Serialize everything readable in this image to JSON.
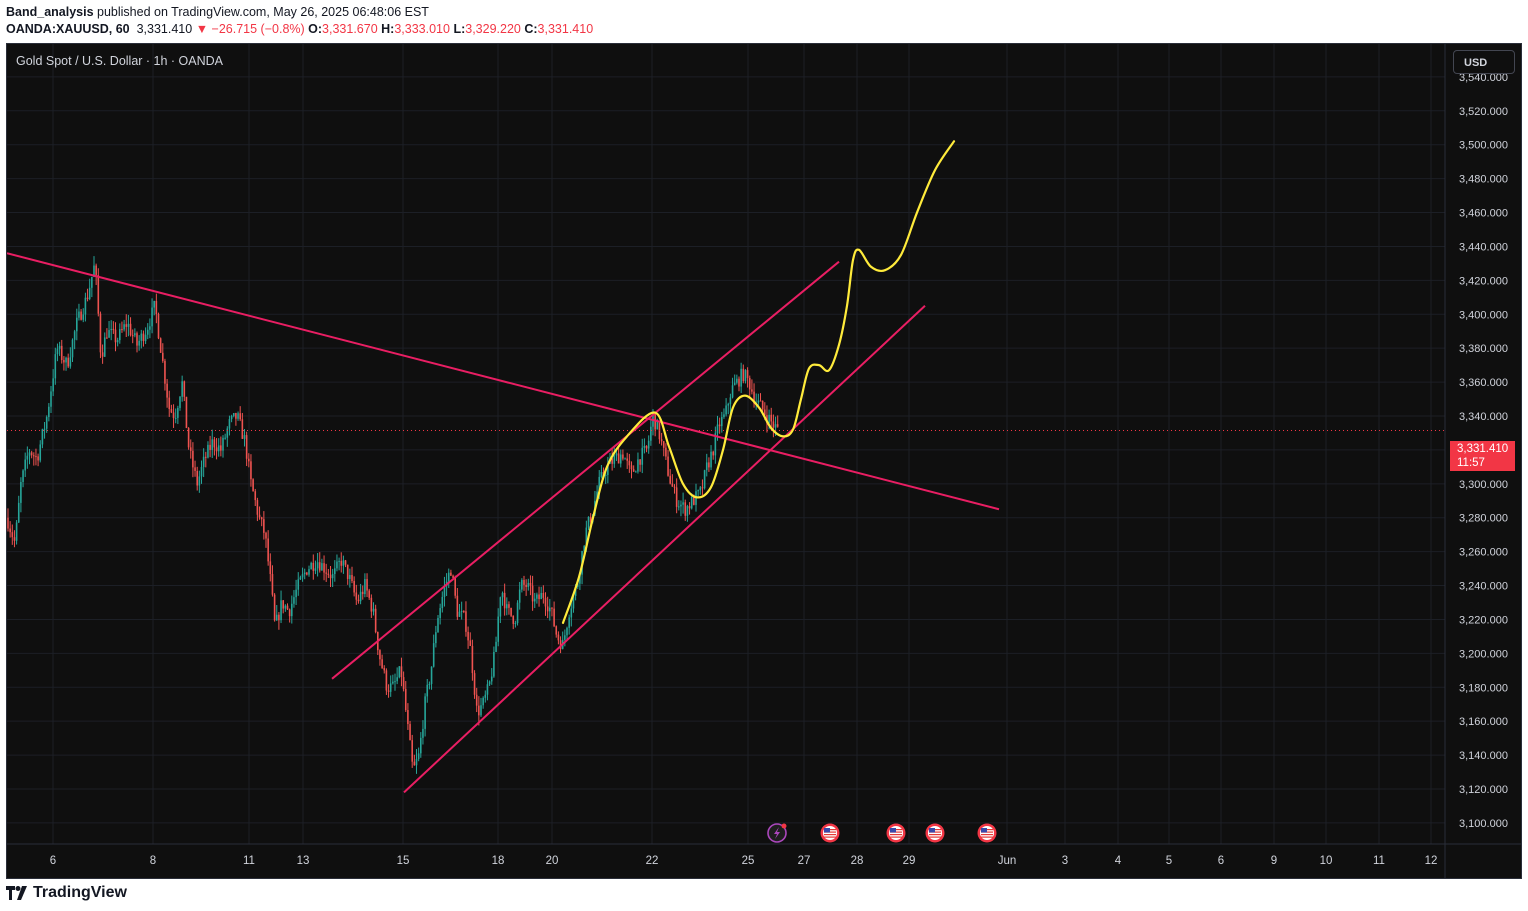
{
  "header": {
    "author": "Band_analysis",
    "published": " published on TradingView.com, May 26, 2025 06:48:06 EST",
    "symbol": "OANDA:XAUUSD, 60",
    "last": "3,331.410",
    "change": "−26.715 (−0.8%)",
    "o_label": "O:",
    "o": "3,331.670",
    "h_label": "H:",
    "h": "3,333.010",
    "l_label": "L:",
    "l": "3,329.220",
    "c_label": "C:",
    "c": "3,331.410"
  },
  "chart": {
    "symbol_title": "Gold Spot / U.S. Dollar · 1h · OANDA",
    "currency": "USD",
    "price_tag": "3,331.410",
    "countdown": "11:57"
  },
  "footer": {
    "brand": "TradingView"
  },
  "colors": {
    "background": "#0f0f0f",
    "up": "#26a69a",
    "down": "#ef5350",
    "trendline": "#e91e63",
    "projection": "#ffeb3b",
    "last_price": "#f23645"
  },
  "chart_data": {
    "type": "candlestick",
    "ylim": [
      3100,
      3550
    ],
    "y_ticks": [
      3100,
      3120,
      3140,
      3160,
      3180,
      3200,
      3220,
      3240,
      3260,
      3280,
      3300,
      3320,
      3340,
      3360,
      3380,
      3400,
      3420,
      3440,
      3460,
      3480,
      3500,
      3520,
      3540
    ],
    "y_tick_labels": [
      "3,100.000",
      "3,120.000",
      "3,140.000",
      "3,160.000",
      "3,180.000",
      "3,200.000",
      "3,220.000",
      "3,240.000",
      "3,260.000",
      "3,280.000",
      "3,300.000",
      "3,320.000",
      "3,340.000",
      "3,360.000",
      "3,380.000",
      "3,400.000",
      "3,420.000",
      "3,440.000",
      "3,460.000",
      "3,480.000",
      "3,500.000",
      "3,520.000",
      "3,540.000"
    ],
    "x_ticks": [
      {
        "label": "6",
        "pos": 46
      },
      {
        "label": "8",
        "pos": 146
      },
      {
        "label": "11",
        "pos": 242
      },
      {
        "label": "13",
        "pos": 296
      },
      {
        "label": "15",
        "pos": 396
      },
      {
        "label": "18",
        "pos": 491
      },
      {
        "label": "20",
        "pos": 545
      },
      {
        "label": "22",
        "pos": 645
      },
      {
        "label": "25",
        "pos": 741
      },
      {
        "label": "27",
        "pos": 797
      },
      {
        "label": "28",
        "pos": 850
      },
      {
        "label": "29",
        "pos": 902
      },
      {
        "label": "Jun",
        "pos": 1000
      },
      {
        "label": "3",
        "pos": 1058
      },
      {
        "label": "4",
        "pos": 1111
      },
      {
        "label": "5",
        "pos": 1162
      },
      {
        "label": "6",
        "pos": 1214
      },
      {
        "label": "9",
        "pos": 1267
      },
      {
        "label": "10",
        "pos": 1319
      },
      {
        "label": "11",
        "pos": 1372
      },
      {
        "label": "12",
        "pos": 1424
      }
    ],
    "last_price": 3331.41,
    "price_path": [
      [
        0,
        3280
      ],
      [
        8,
        3265
      ],
      [
        14,
        3300
      ],
      [
        22,
        3320
      ],
      [
        30,
        3315
      ],
      [
        40,
        3340
      ],
      [
        50,
        3380
      ],
      [
        60,
        3370
      ],
      [
        70,
        3395
      ],
      [
        80,
        3410
      ],
      [
        88,
        3430
      ],
      [
        94,
        3375
      ],
      [
        100,
        3390
      ],
      [
        110,
        3385
      ],
      [
        120,
        3395
      ],
      [
        130,
        3382
      ],
      [
        140,
        3392
      ],
      [
        148,
        3405
      ],
      [
        155,
        3375
      ],
      [
        162,
        3345
      ],
      [
        168,
        3340
      ],
      [
        175,
        3360
      ],
      [
        182,
        3320
      ],
      [
        190,
        3300
      ],
      [
        198,
        3315
      ],
      [
        206,
        3325
      ],
      [
        214,
        3320
      ],
      [
        222,
        3335
      ],
      [
        230,
        3340
      ],
      [
        238,
        3325
      ],
      [
        244,
        3300
      ],
      [
        252,
        3280
      ],
      [
        258,
        3270
      ],
      [
        264,
        3240
      ],
      [
        268,
        3215
      ],
      [
        275,
        3230
      ],
      [
        282,
        3225
      ],
      [
        290,
        3238
      ],
      [
        300,
        3250
      ],
      [
        310,
        3255
      ],
      [
        318,
        3250
      ],
      [
        326,
        3245
      ],
      [
        334,
        3255
      ],
      [
        342,
        3245
      ],
      [
        350,
        3230
      ],
      [
        358,
        3240
      ],
      [
        366,
        3225
      ],
      [
        372,
        3200
      ],
      [
        380,
        3180
      ],
      [
        386,
        3180
      ],
      [
        394,
        3190
      ],
      [
        400,
        3160
      ],
      [
        406,
        3130
      ],
      [
        412,
        3140
      ],
      [
        418,
        3170
      ],
      [
        424,
        3190
      ],
      [
        430,
        3220
      ],
      [
        438,
        3240
      ],
      [
        444,
        3250
      ],
      [
        450,
        3225
      ],
      [
        458,
        3220
      ],
      [
        464,
        3200
      ],
      [
        470,
        3165
      ],
      [
        476,
        3170
      ],
      [
        482,
        3180
      ],
      [
        488,
        3200
      ],
      [
        494,
        3240
      ],
      [
        500,
        3225
      ],
      [
        508,
        3220
      ],
      [
        514,
        3240
      ],
      [
        520,
        3240
      ],
      [
        528,
        3230
      ],
      [
        536,
        3235
      ],
      [
        544,
        3225
      ],
      [
        550,
        3210
      ],
      [
        556,
        3205
      ],
      [
        562,
        3225
      ],
      [
        570,
        3240
      ],
      [
        578,
        3270
      ],
      [
        586,
        3285
      ],
      [
        592,
        3300
      ],
      [
        600,
        3310
      ],
      [
        608,
        3315
      ],
      [
        616,
        3318
      ],
      [
        624,
        3305
      ],
      [
        632,
        3315
      ],
      [
        640,
        3320
      ],
      [
        646,
        3340
      ],
      [
        652,
        3330
      ],
      [
        658,
        3315
      ],
      [
        664,
        3300
      ],
      [
        670,
        3290
      ],
      [
        678,
        3285
      ],
      [
        686,
        3290
      ],
      [
        694,
        3295
      ],
      [
        700,
        3310
      ],
      [
        706,
        3320
      ],
      [
        712,
        3335
      ],
      [
        718,
        3340
      ],
      [
        724,
        3355
      ],
      [
        730,
        3360
      ],
      [
        736,
        3365
      ],
      [
        742,
        3360
      ],
      [
        748,
        3350
      ],
      [
        754,
        3345
      ],
      [
        760,
        3340
      ],
      [
        766,
        3335
      ],
      [
        772,
        3331
      ]
    ],
    "lines": [
      {
        "name": "descending-trendline",
        "color": "#e91e63",
        "points": [
          [
            0,
            3436
          ],
          [
            992,
            3285
          ]
        ]
      },
      {
        "name": "channel-upper",
        "color": "#e91e63",
        "points": [
          [
            325,
            3185
          ],
          [
            832,
            3431
          ]
        ]
      },
      {
        "name": "channel-lower",
        "color": "#e91e63",
        "points": [
          [
            397,
            3118
          ],
          [
            918,
            3405
          ]
        ]
      }
    ],
    "projection": {
      "color": "#ffeb3b",
      "points": [
        [
          556,
          3218
        ],
        [
          572,
          3245
        ],
        [
          586,
          3280
        ],
        [
          600,
          3310
        ],
        [
          620,
          3328
        ],
        [
          648,
          3342
        ],
        [
          662,
          3322
        ],
        [
          676,
          3300
        ],
        [
          690,
          3292
        ],
        [
          704,
          3298
        ],
        [
          716,
          3320
        ],
        [
          726,
          3345
        ],
        [
          738,
          3352
        ],
        [
          752,
          3345
        ],
        [
          764,
          3333
        ],
        [
          776,
          3328
        ],
        [
          786,
          3332
        ],
        [
          794,
          3350
        ],
        [
          802,
          3368
        ],
        [
          812,
          3370
        ],
        [
          822,
          3367
        ],
        [
          832,
          3382
        ],
        [
          840,
          3405
        ],
        [
          846,
          3432
        ],
        [
          852,
          3438
        ],
        [
          864,
          3428
        ],
        [
          878,
          3426
        ],
        [
          894,
          3435
        ],
        [
          910,
          3460
        ],
        [
          928,
          3485
        ],
        [
          947,
          3502
        ]
      ]
    },
    "events": [
      {
        "type": "lightning",
        "x": 770
      },
      {
        "type": "flag-us",
        "x": 823
      },
      {
        "type": "flag-us",
        "x": 889
      },
      {
        "type": "flag-us",
        "x": 928
      },
      {
        "type": "flag-us",
        "x": 980
      }
    ]
  }
}
